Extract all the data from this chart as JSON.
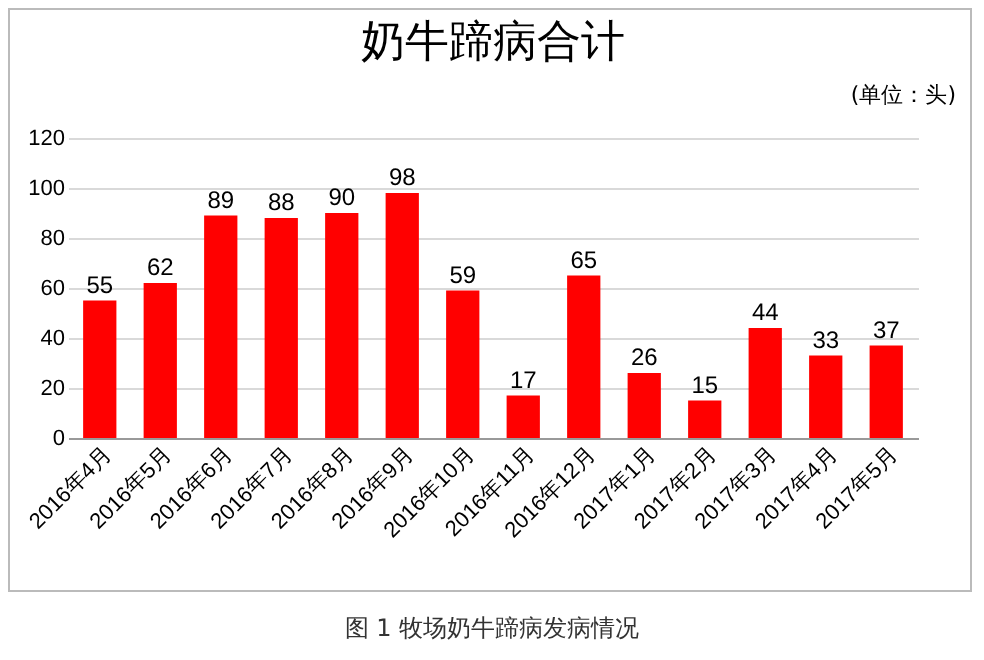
{
  "chart_data": {
    "type": "bar",
    "title": "奶牛蹄病合计",
    "categories": [
      "2016年4月",
      "2016年5月",
      "2016年6月",
      "2016年7月",
      "2016年8月",
      "2016年9月",
      "2016年10月",
      "2016年11月",
      "2016年12月",
      "2017年1月",
      "2017年2月",
      "2017年3月",
      "2017年4月",
      "2017年5月"
    ],
    "values": [
      55,
      62,
      89,
      88,
      90,
      98,
      59,
      17,
      65,
      26,
      15,
      44,
      33,
      37
    ],
    "color": "#ff0000",
    "ylim": [
      0,
      120
    ],
    "yticks": [
      0,
      20,
      40,
      60,
      80,
      100,
      120
    ],
    "grid": "y",
    "data_labels": true,
    "annotations": [
      "(单位：头)",
      "图 1  牧场奶牛蹄病发病情况"
    ]
  }
}
